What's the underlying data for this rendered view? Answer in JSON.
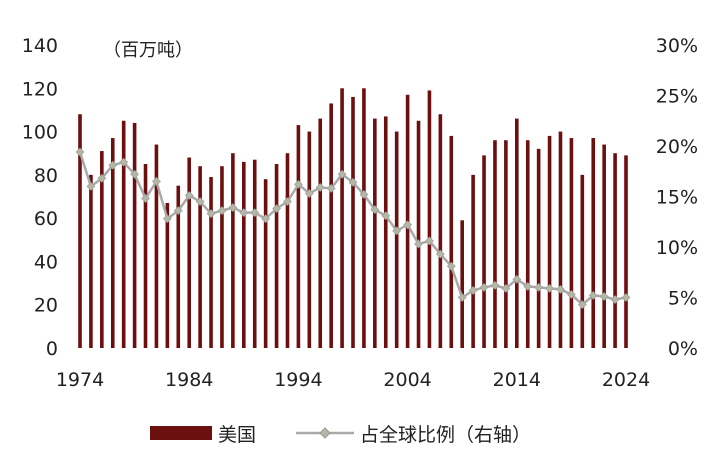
{
  "chart_data": {
    "type": "bar+line",
    "unit_label": "（百万吨）",
    "x": [
      1974,
      1975,
      1976,
      1977,
      1978,
      1979,
      1980,
      1981,
      1982,
      1983,
      1984,
      1985,
      1986,
      1987,
      1988,
      1989,
      1990,
      1991,
      1992,
      1993,
      1994,
      1995,
      1996,
      1997,
      1998,
      1999,
      2000,
      2001,
      2002,
      2003,
      2004,
      2005,
      2006,
      2007,
      2008,
      2009,
      2010,
      2011,
      2012,
      2013,
      2014,
      2015,
      2016,
      2017,
      2018,
      2019,
      2020,
      2021,
      2022,
      2023,
      2024
    ],
    "x_tick_labels": [
      "1974",
      "1984",
      "1994",
      "2004",
      "2014",
      "2024"
    ],
    "y_left_ticks": [
      "0",
      "20",
      "40",
      "60",
      "80",
      "100",
      "120",
      "140"
    ],
    "y_right_ticks": [
      "0%",
      "5%",
      "10%",
      "15%",
      "20%",
      "25%",
      "30%"
    ],
    "ylim_left": [
      0,
      140
    ],
    "ylim_right": [
      0,
      0.3
    ],
    "grid": false,
    "legend_position": "bottom",
    "series": [
      {
        "name": "美国",
        "kind": "bar",
        "axis": "left",
        "color": "#6b0f0f",
        "values": [
          108,
          80,
          91,
          97,
          105,
          104,
          85,
          94,
          67,
          75,
          88,
          84,
          79,
          84,
          90,
          86,
          87,
          78,
          85,
          90,
          103,
          100,
          106,
          113,
          120,
          116,
          120,
          106,
          107,
          100,
          117,
          105,
          119,
          108,
          98,
          59,
          80,
          89,
          96,
          96,
          106,
          96,
          92,
          98,
          100,
          97,
          80,
          97,
          94,
          90,
          89
        ]
      },
      {
        "name": "占全球比例（右轴）",
        "kind": "line",
        "axis": "right",
        "color": "#a9a9a9",
        "marker_color": "#b5b5a8",
        "values": [
          0.194,
          0.16,
          0.168,
          0.181,
          0.184,
          0.172,
          0.148,
          0.165,
          0.128,
          0.136,
          0.151,
          0.145,
          0.133,
          0.136,
          0.139,
          0.134,
          0.134,
          0.128,
          0.138,
          0.145,
          0.162,
          0.153,
          0.159,
          0.158,
          0.172,
          0.164,
          0.152,
          0.137,
          0.131,
          0.116,
          0.122,
          0.103,
          0.106,
          0.093,
          0.081,
          0.05,
          0.057,
          0.06,
          0.062,
          0.059,
          0.068,
          0.061,
          0.06,
          0.059,
          0.058,
          0.053,
          0.043,
          0.052,
          0.051,
          0.048,
          0.05
        ]
      }
    ]
  }
}
